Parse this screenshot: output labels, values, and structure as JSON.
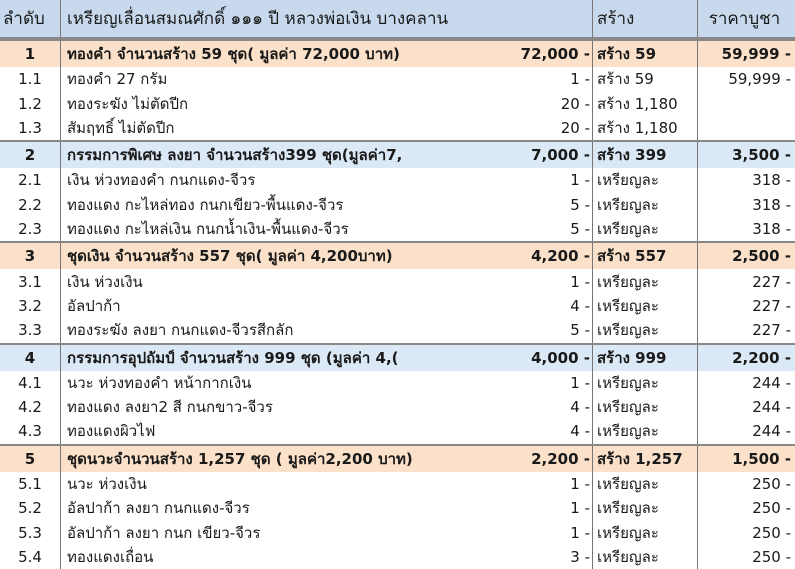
{
  "header": {
    "no": "ลำดับ",
    "title": "เหรียญเลื่อนสมณศักดิ์ ๑๑๑ ปี หลวงพ่อเงิน บางคลาน",
    "build": "สร้าง",
    "price": "ราคาบูชา"
  },
  "colors": {
    "header_bg": "#c8d9ee",
    "group_peach": "#fbe1c9",
    "group_blue": "#dbe8f5"
  },
  "groups": [
    {
      "no": "1",
      "desc": "ทองคำ จำนวนสร้าง 59 ชุด( มูลค่า  72,000  บาท)",
      "qty": "72,000 -",
      "build": "สร้าง 59",
      "price": "59,999 -",
      "color": "peach",
      "items": [
        {
          "no": "1.1",
          "desc": "ทองคำ 27 กรัม",
          "qty": "1 -",
          "build": "สร้าง 59",
          "price": "59,999 -"
        },
        {
          "no": "1.2",
          "desc": "ทองระฆัง ไม่ตัดปีก",
          "qty": "20 -",
          "build": "สร้าง 1,180",
          "price": ""
        },
        {
          "no": "1.3",
          "desc": "สัมฤทธิ์ ไม่ตัดปีก",
          "qty": "20 -",
          "build": "สร้าง 1,180",
          "price": ""
        }
      ]
    },
    {
      "no": "2",
      "desc": "กรรมการพิเศษ ลงยา จำนวนสร้าง399 ชุด(มูลค่า7,",
      "qty": "7,000 -",
      "build": "สร้าง 399",
      "price": "3,500 -",
      "color": "blue",
      "items": [
        {
          "no": "2.1",
          "desc": "เงิน ห่วงทองคำ กนกแดง-จีวร",
          "qty": "1 -",
          "build": "เหรียญละ",
          "price": "318 -"
        },
        {
          "no": "2.2",
          "desc": "ทองแดง กะไหล่ทอง กนกเขียว-พื้นแดง-จีวร",
          "qty": "5 -",
          "build": "เหรียญละ",
          "price": "318 -"
        },
        {
          "no": "2.3",
          "desc": "ทองแดง กะไหล่เงิน กนกน้ำเงิน-พื้นแดง-จีวร",
          "qty": "5 -",
          "build": "เหรียญละ",
          "price": "318 -"
        }
      ]
    },
    {
      "no": "3",
      "desc": "ชุดเงิน  จำนวนสร้าง 557 ชุด( มูลค่า 4,200บาท)",
      "qty": "4,200 -",
      "build": "สร้าง 557",
      "price": "2,500 -",
      "color": "peach",
      "items": [
        {
          "no": "3.1",
          "desc": "เงิน ห่วงเงิน",
          "qty": "1 -",
          "build": "เหรียญละ",
          "price": "227 -"
        },
        {
          "no": "3.2",
          "desc": "อัลปาก้า",
          "qty": "4 -",
          "build": "เหรียญละ",
          "price": "227 -"
        },
        {
          "no": "3.3",
          "desc": "ทองระฆัง ลงยา กนกแดง-จีวรสีกลัก",
          "qty": "5 -",
          "build": "เหรียญละ",
          "price": "227 -"
        }
      ]
    },
    {
      "no": "4",
      "desc": "กรรมการอุปถัมป์  จำนวนสร้าง 999  ชุด (มูลค่า 4,(",
      "qty": "4,000 -",
      "build": "สร้าง 999",
      "price": "2,200 -",
      "color": "blue",
      "items": [
        {
          "no": "4.1",
          "desc": "นวะ ห่วงทองคำ หน้ากากเงิน",
          "qty": "1 -",
          "build": "เหรียญละ",
          "price": "244 -"
        },
        {
          "no": "4.2",
          "desc": "ทองแดง ลงยา2 สี กนกขาว-จีวร",
          "qty": "4 -",
          "build": "เหรียญละ",
          "price": "244 -"
        },
        {
          "no": "4.3",
          "desc": "ทองแดงผิวไฟ",
          "qty": "4 -",
          "build": "เหรียญละ",
          "price": "244 -"
        }
      ]
    },
    {
      "no": "5",
      "desc": "ชุดนวะจำนวนสร้าง 1,257 ชุด ( มูลค่า2,200  บาท)",
      "qty": "2,200 -",
      "build": "สร้าง 1,257",
      "price": "1,500 -",
      "color": "peach",
      "items": [
        {
          "no": "5.1",
          "desc": "นวะ ห่วงเงิน",
          "qty": "1 -",
          "build": "เหรียญละ",
          "price": "250 -"
        },
        {
          "no": "5.2",
          "desc": "อัลปาก้า ลงยา กนกแดง-จีวร",
          "qty": "1 -",
          "build": "เหรียญละ",
          "price": "250 -"
        },
        {
          "no": "5.3",
          "desc": "อัลปาก้า ลงยา กนก เขียว-จีวร",
          "qty": "1 -",
          "build": "เหรียญละ",
          "price": "250 -"
        },
        {
          "no": "5.4",
          "desc": "ทองแดงเถื่อน",
          "qty": "3 -",
          "build": "เหรียญละ",
          "price": "250 -"
        }
      ]
    }
  ]
}
